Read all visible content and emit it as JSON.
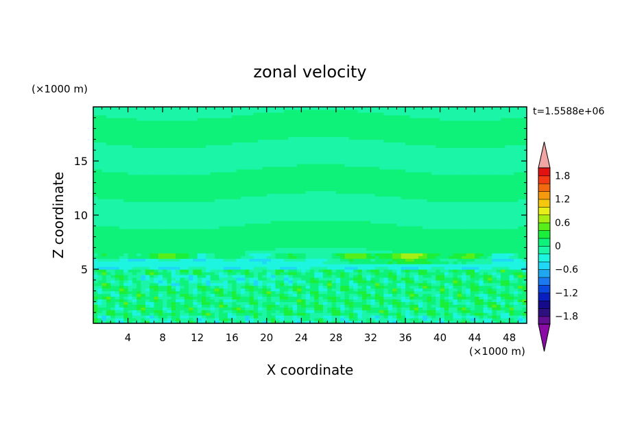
{
  "chart_data": {
    "type": "heatmap",
    "title": "zonal velocity",
    "xlabel": "X coordinate",
    "ylabel": "Z coordinate",
    "x_unit": "(×1000 m)",
    "y_unit": "(×1000 m)",
    "time_label": "t=1.5588e+06",
    "xlim": [
      0,
      50
    ],
    "ylim": [
      0,
      20
    ],
    "x_ticks": [
      4,
      8,
      12,
      16,
      20,
      24,
      28,
      32,
      36,
      40,
      44,
      48
    ],
    "y_ticks": [
      5,
      10,
      15
    ],
    "colorbar": {
      "min": -2,
      "max": 2,
      "step": 0.2,
      "tick_labels": [
        "1.8",
        "1.2",
        "0.6",
        "0",
        "−0.6",
        "−1.2",
        "−1.8"
      ],
      "tick_values": [
        1.8,
        1.2,
        0.6,
        0,
        -0.6,
        -1.2,
        -1.8
      ],
      "colors": [
        "#5f0f8f",
        "#2d0f7f",
        "#140a8a",
        "#0a1fbf",
        "#0a48e0",
        "#1c7af0",
        "#1fa8f0",
        "#1fd8f5",
        "#1ef5e0",
        "#1af5a8",
        "#0ff27a",
        "#1aef3c",
        "#57ee1a",
        "#a6ee14",
        "#e8ee19",
        "#f5c80f",
        "#f59a0f",
        "#f26a0f",
        "#f23a14",
        "#e01212"
      ],
      "over_color": "#f2a5a5",
      "under_color": "#8a0aa6"
    },
    "field_description_layers": [
      {
        "z_range": [
          0,
          5
        ],
        "character": "turbulent, mixed green/yellow with cyan patches, values about -0.4 to 0.6"
      },
      {
        "z_range": [
          5,
          6.5
        ],
        "character": "yellow jet 0.4–0.8 near x=26–44, cyan band below"
      },
      {
        "z_range": [
          6.5,
          20
        ],
        "character": "alternating green (~0.1) and sea-green (~-0.1) horizontal layers"
      }
    ]
  }
}
